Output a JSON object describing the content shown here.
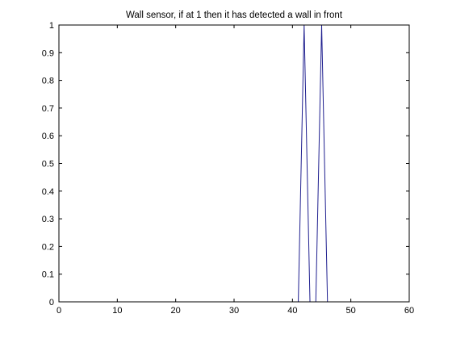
{
  "chart_data": {
    "type": "line",
    "title": "Wall sensor, if at 1 then it has detected a wall in front",
    "xlabel": "",
    "ylabel": "",
    "xlim": [
      0,
      60
    ],
    "ylim": [
      0,
      1
    ],
    "x_ticks": [
      "0",
      "10",
      "20",
      "30",
      "40",
      "50",
      "60"
    ],
    "y_ticks": [
      "0",
      "0.1",
      "0.2",
      "0.3",
      "0.4",
      "0.5",
      "0.6",
      "0.7",
      "0.8",
      "0.9",
      "1"
    ],
    "grid": false,
    "legend": "none",
    "line_color": "#1f1f8f",
    "series": [
      {
        "x": [
          1,
          2,
          3,
          4,
          5,
          6,
          7,
          8,
          9,
          10,
          11,
          12,
          13,
          14,
          15,
          16,
          17,
          18,
          19,
          20,
          21,
          22,
          23,
          24,
          25,
          26,
          27,
          28,
          29,
          30,
          31,
          32,
          33,
          34,
          35,
          36,
          37,
          38,
          39,
          40,
          41,
          42,
          43,
          44,
          45,
          46,
          47,
          48,
          49,
          50,
          51,
          52,
          53,
          54,
          55,
          56,
          57,
          58,
          59,
          60
        ],
        "y": [
          0,
          0,
          0,
          0,
          0,
          0,
          0,
          0,
          0,
          0,
          0,
          0,
          0,
          0,
          0,
          0,
          0,
          0,
          0,
          0,
          0,
          0,
          0,
          0,
          0,
          0,
          0,
          0,
          0,
          0,
          0,
          0,
          0,
          0,
          0,
          0,
          0,
          0,
          0,
          0,
          0,
          1,
          0,
          0,
          1,
          0,
          0,
          0,
          0,
          0,
          0,
          0,
          0,
          0,
          0,
          0,
          0,
          0,
          0,
          0
        ]
      }
    ]
  }
}
